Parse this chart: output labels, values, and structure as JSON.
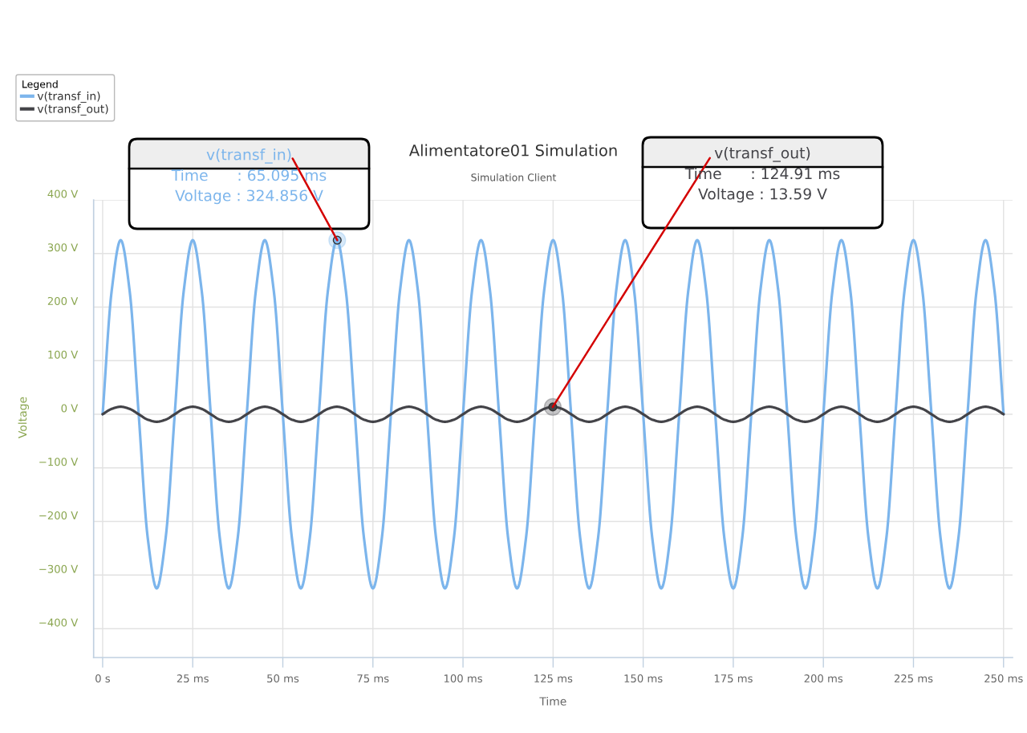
{
  "chart_data": {
    "type": "line",
    "title": "Alimentatore01 Simulation",
    "subtitle": "Simulation Client",
    "xlabel": "Time",
    "ylabel": "Voltage",
    "legend_title": "Legend",
    "legend": "top left",
    "grid": true,
    "xlim": [
      -2.5,
      252.5
    ],
    "ylim": [
      -454,
      400
    ],
    "xticks": [
      {
        "value": 0,
        "label": "0 s"
      },
      {
        "value": 25,
        "label": "25 ms"
      },
      {
        "value": 50,
        "label": "50 ms"
      },
      {
        "value": 75,
        "label": "75 ms"
      },
      {
        "value": 100,
        "label": "100 ms"
      },
      {
        "value": 125,
        "label": "125 ms"
      },
      {
        "value": 150,
        "label": "150 ms"
      },
      {
        "value": 175,
        "label": "175 ms"
      },
      {
        "value": 200,
        "label": "200 ms"
      },
      {
        "value": 225,
        "label": "225 ms"
      },
      {
        "value": 250,
        "label": "250 ms"
      }
    ],
    "yticks": [
      {
        "value": 400,
        "label": "400 V"
      },
      {
        "value": 300,
        "label": "300 V"
      },
      {
        "value": 200,
        "label": "200 V"
      },
      {
        "value": 100,
        "label": "100 V"
      },
      {
        "value": 0,
        "label": "0 V"
      },
      {
        "value": -100,
        "label": "−100 V"
      },
      {
        "value": -200,
        "label": "−200 V"
      },
      {
        "value": -300,
        "label": "−300 V"
      },
      {
        "value": -400,
        "label": "−400 V"
      }
    ],
    "x": [
      0,
      2.5,
      5,
      7.5,
      10,
      12.5,
      15,
      17.5,
      20,
      22.5,
      25,
      27.5,
      30,
      32.5,
      35,
      37.5,
      40,
      42.5,
      45,
      47.5,
      50,
      52.5,
      55,
      57.5,
      60,
      62.5,
      65,
      67.5,
      70,
      72.5,
      75,
      77.5,
      80,
      82.5,
      85,
      87.5,
      90,
      92.5,
      95,
      97.5,
      100,
      102.5,
      105,
      107.5,
      110,
      112.5,
      115,
      117.5,
      120,
      122.5,
      125,
      127.5,
      130,
      132.5,
      135,
      137.5,
      140,
      142.5,
      145,
      147.5,
      150,
      152.5,
      155,
      157.5,
      160,
      162.5,
      165,
      167.5,
      170,
      172.5,
      175,
      177.5,
      180,
      182.5,
      185,
      187.5,
      190,
      192.5,
      195,
      197.5,
      200,
      202.5,
      205,
      207.5,
      210,
      212.5,
      215,
      217.5,
      220,
      222.5,
      225,
      227.5,
      230,
      232.5,
      235,
      237.5,
      240,
      242.5,
      245,
      247.5,
      250
    ],
    "series": [
      {
        "name": "v(transf_in)",
        "color": "#7cb5ec",
        "values": [
          0,
          230,
          325,
          230,
          0,
          -230,
          -325,
          -230,
          0,
          230,
          325,
          230,
          0,
          -230,
          -325,
          -230,
          0,
          230,
          325,
          230,
          0,
          -230,
          -325,
          -230,
          0,
          230,
          325,
          230,
          0,
          -230,
          -325,
          -230,
          0,
          230,
          325,
          230,
          0,
          -230,
          -325,
          -230,
          0,
          230,
          325,
          230,
          0,
          -230,
          -325,
          -230,
          0,
          230,
          325,
          230,
          0,
          -230,
          -325,
          -230,
          0,
          230,
          325,
          230,
          0,
          -230,
          -325,
          -230,
          0,
          230,
          325,
          230,
          0,
          -230,
          -325,
          -230,
          0,
          230,
          325,
          230,
          0,
          -230,
          -325,
          -230,
          0,
          230,
          325,
          230,
          0,
          -230,
          -325,
          -230,
          0,
          230,
          325,
          230,
          0,
          -230,
          -325,
          -230,
          0,
          230,
          325,
          230,
          0
        ]
      },
      {
        "name": "v(transf_out)",
        "color": "#434348",
        "values": [
          0,
          10,
          14,
          10,
          0,
          -10,
          -14,
          -10,
          0,
          10,
          14,
          10,
          0,
          -10,
          -14,
          -10,
          0,
          10,
          14,
          10,
          0,
          -10,
          -14,
          -10,
          0,
          10,
          14,
          10,
          0,
          -10,
          -14,
          -10,
          0,
          10,
          14,
          10,
          0,
          -10,
          -14,
          -10,
          0,
          10,
          14,
          10,
          0,
          -10,
          -14,
          -10,
          0,
          10,
          14,
          10,
          0,
          -10,
          -14,
          -10,
          0,
          10,
          14,
          10,
          0,
          -10,
          -14,
          -10,
          0,
          10,
          14,
          10,
          0,
          -10,
          -14,
          -10,
          0,
          10,
          14,
          10,
          0,
          -10,
          -14,
          -10,
          0,
          10,
          14,
          10,
          0,
          -10,
          -14,
          -10,
          0,
          10,
          14,
          10,
          0,
          -10,
          -14,
          -10,
          0,
          10,
          14,
          10,
          0
        ]
      }
    ],
    "annotations": [
      {
        "text": "v(transf_in)\nTime      : 65.095 ms\nVoltage : 324.856 V",
        "x": 65.095,
        "y": 324.856
      },
      {
        "text": "v(transf_out)\nTime      : 124.91 ms\nVoltage : 13.59 V",
        "x": 124.91,
        "y": 13.59
      }
    ]
  }
}
